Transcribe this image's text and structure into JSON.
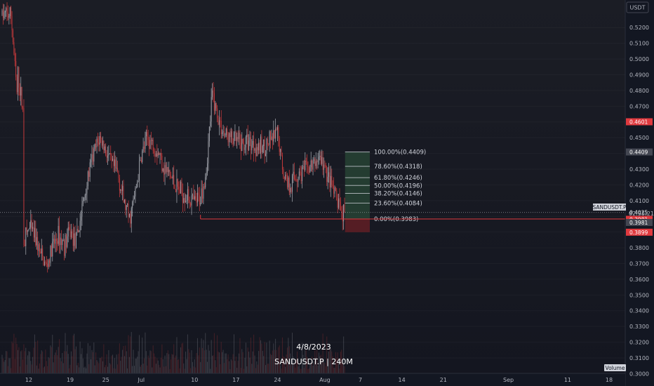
{
  "header": {
    "currency": "USDT"
  },
  "caption": {
    "date": "4/8/2023",
    "symbol_line": "SANDUSDT.P | 240M"
  },
  "volume_label": "Volume",
  "symbol_tag": "SANDUSDT.P",
  "countdown": "02:35:21",
  "colors": {
    "up": "#9b9ea6",
    "down": "#c0393b",
    "fib_green": "#2f5a3e",
    "fib_red": "#6b1f26",
    "label_red": "#e0393e",
    "label_grey": "#434651"
  },
  "chart_data": {
    "type": "candlestick",
    "title": "",
    "xlabel": "",
    "ylabel": "",
    "ylim": [
      0.2975,
      0.5375
    ],
    "y_ticks": [
      "0.3000",
      "0.3100",
      "0.3200",
      "0.3300",
      "0.3400",
      "0.3500",
      "0.3600",
      "0.3700",
      "0.3800",
      "0.3900",
      "0.4000",
      "0.4100",
      "0.4200",
      "0.4300",
      "0.4400",
      "0.4500",
      "0.4600",
      "0.4700",
      "0.4800",
      "0.4900",
      "0.5000",
      "0.5100",
      "0.5200"
    ],
    "x_ticks": [
      "12",
      "19",
      "25",
      "Jul",
      "10",
      "17",
      "24",
      "Aug",
      "7",
      "14",
      "21",
      "Sep",
      "11",
      "18"
    ],
    "price_path": [
      {
        "date": "2023-06-09",
        "price": 0.528
      },
      {
        "date": "2023-06-10",
        "price": 0.478
      },
      {
        "date": "2023-06-10",
        "price": 0.49
      },
      {
        "date": "2023-06-11",
        "price": 0.468
      },
      {
        "date": "2023-06-11",
        "price": 0.385
      },
      {
        "date": "2023-06-12",
        "price": 0.392
      },
      {
        "date": "2023-06-13",
        "price": 0.388
      },
      {
        "date": "2023-06-14",
        "price": 0.375
      },
      {
        "date": "2023-06-15",
        "price": 0.368
      },
      {
        "date": "2023-06-16",
        "price": 0.38
      },
      {
        "date": "2023-06-17",
        "price": 0.388
      },
      {
        "date": "2023-06-18",
        "price": 0.382
      },
      {
        "date": "2023-06-19",
        "price": 0.39
      },
      {
        "date": "2023-06-20",
        "price": 0.383
      },
      {
        "date": "2023-06-21",
        "price": 0.405
      },
      {
        "date": "2023-06-22",
        "price": 0.425
      },
      {
        "date": "2023-06-23",
        "price": 0.44
      },
      {
        "date": "2023-06-24",
        "price": 0.45
      },
      {
        "date": "2023-06-25",
        "price": 0.442
      },
      {
        "date": "2023-06-26",
        "price": 0.432
      },
      {
        "date": "2023-06-27",
        "price": 0.428
      },
      {
        "date": "2023-06-28",
        "price": 0.41
      },
      {
        "date": "2023-06-29",
        "price": 0.398
      },
      {
        "date": "2023-06-30",
        "price": 0.415
      },
      {
        "date": "2023-07-01",
        "price": 0.438
      },
      {
        "date": "2023-07-02",
        "price": 0.45
      },
      {
        "date": "2023-07-03",
        "price": 0.446
      },
      {
        "date": "2023-07-04",
        "price": 0.44
      },
      {
        "date": "2023-07-05",
        "price": 0.43
      },
      {
        "date": "2023-07-06",
        "price": 0.425
      },
      {
        "date": "2023-07-07",
        "price": 0.418
      },
      {
        "date": "2023-07-08",
        "price": 0.415
      },
      {
        "date": "2023-07-09",
        "price": 0.412
      },
      {
        "date": "2023-07-10",
        "price": 0.408
      },
      {
        "date": "2023-07-11",
        "price": 0.412
      },
      {
        "date": "2023-07-12",
        "price": 0.43
      },
      {
        "date": "2023-07-13",
        "price": 0.478
      },
      {
        "date": "2023-07-14",
        "price": 0.462
      },
      {
        "date": "2023-07-15",
        "price": 0.452
      },
      {
        "date": "2023-07-16",
        "price": 0.45
      },
      {
        "date": "2023-07-17",
        "price": 0.448
      },
      {
        "date": "2023-07-18",
        "price": 0.445
      },
      {
        "date": "2023-07-19",
        "price": 0.448
      },
      {
        "date": "2023-07-20",
        "price": 0.446
      },
      {
        "date": "2023-07-21",
        "price": 0.443
      },
      {
        "date": "2023-07-22",
        "price": 0.445
      },
      {
        "date": "2023-07-23",
        "price": 0.448
      },
      {
        "date": "2023-07-24",
        "price": 0.452
      },
      {
        "date": "2023-07-25",
        "price": 0.428
      },
      {
        "date": "2023-07-26",
        "price": 0.42
      },
      {
        "date": "2023-07-27",
        "price": 0.425
      },
      {
        "date": "2023-07-28",
        "price": 0.428
      },
      {
        "date": "2023-07-29",
        "price": 0.43
      },
      {
        "date": "2023-07-30",
        "price": 0.432
      },
      {
        "date": "2023-07-31",
        "price": 0.438
      },
      {
        "date": "2023-08-01",
        "price": 0.43
      },
      {
        "date": "2023-08-02",
        "price": 0.42
      },
      {
        "date": "2023-08-03",
        "price": 0.41
      },
      {
        "date": "2023-08-04",
        "price": 0.402
      }
    ],
    "fib_levels": [
      {
        "label": "100.00%(0.4409)",
        "price": 0.4409
      },
      {
        "label": "78.60%(0.4318)",
        "price": 0.4318
      },
      {
        "label": "61.80%(0.4246)",
        "price": 0.4246
      },
      {
        "label": "50.00%(0.4196)",
        "price": 0.4196
      },
      {
        "label": "38.20%(0.4146)",
        "price": 0.4146
      },
      {
        "label": "23.60%(0.4084)",
        "price": 0.4084
      },
      {
        "label": "0.00%(0.3983)",
        "price": 0.3983
      }
    ],
    "fib_zone": {
      "start": "2023-08-04",
      "end": "2023-08-08",
      "top": 0.4409,
      "mid": 0.3983,
      "bottom": 0.3899
    },
    "support_line": {
      "start": "2023-07-11",
      "end": "2023-09-22",
      "price": 0.3983
    },
    "current_price_line": 0.4025,
    "price_labels": [
      {
        "text": "0.4601",
        "price": 0.4601,
        "style": "red"
      },
      {
        "text": "0.4409",
        "price": 0.4409,
        "style": "grey"
      },
      {
        "text": "0.4025",
        "price": 0.4025,
        "style": "current"
      },
      {
        "text": "0.3981",
        "price": 0.3981,
        "style": "red"
      },
      {
        "text": "0.3981",
        "price": 0.3961,
        "style": "grey"
      },
      {
        "text": "0.3899",
        "price": 0.3899,
        "style": "red"
      }
    ]
  }
}
